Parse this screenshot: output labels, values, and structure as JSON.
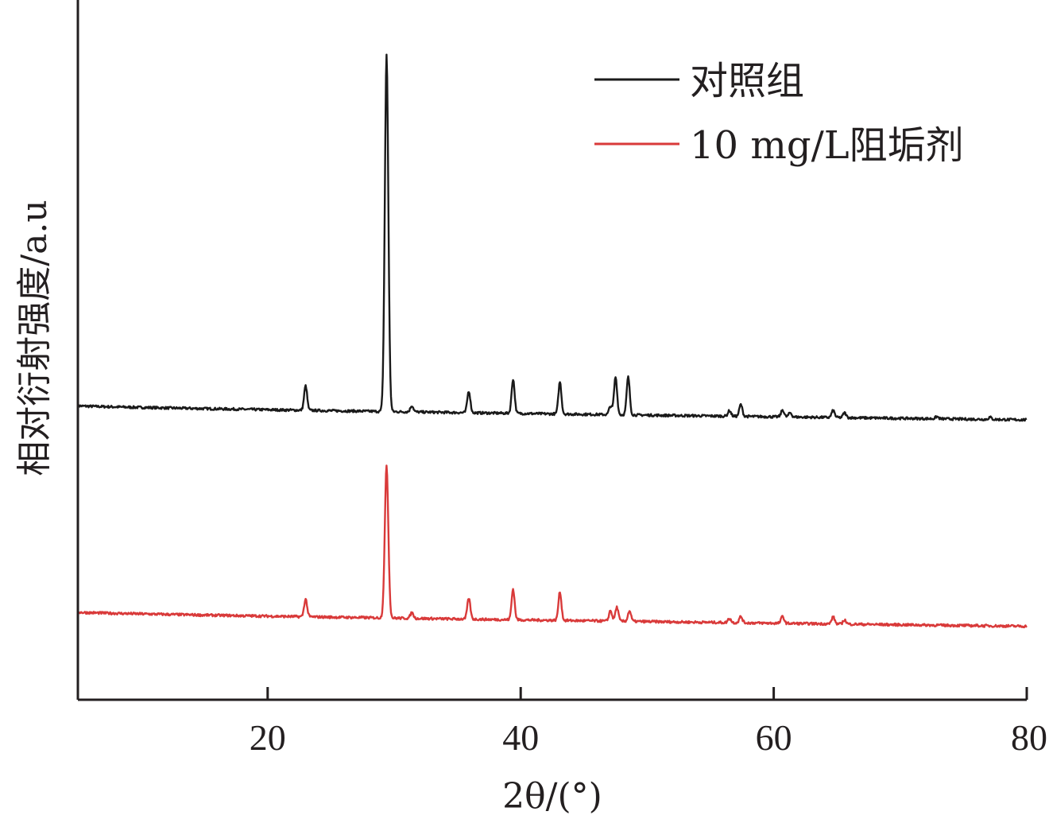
{
  "chart_data": {
    "type": "line",
    "title": "",
    "xlabel": "2θ/(°)",
    "ylabel": "相对衍射强度/a.u",
    "xlim": [
      5,
      80
    ],
    "ylim": [
      0,
      100
    ],
    "x_ticks": [
      20,
      40,
      60,
      80
    ],
    "y_ticks": [],
    "grid": false,
    "legend_position": "top-right",
    "colors": {
      "control": "#1a1a1a",
      "inhibitor": "#d93a3a",
      "axis": "#231f20"
    },
    "series": [
      {
        "name": "对照组",
        "baseline_start": 42.0,
        "baseline_end": 40.0,
        "peaks": [
          {
            "x": 23.0,
            "y": 3.5
          },
          {
            "x": 29.4,
            "y": 51.0
          },
          {
            "x": 31.4,
            "y": 0.9
          },
          {
            "x": 35.9,
            "y": 3.1
          },
          {
            "x": 39.4,
            "y": 4.9
          },
          {
            "x": 43.1,
            "y": 4.6
          },
          {
            "x": 47.1,
            "y": 1.2
          },
          {
            "x": 47.5,
            "y": 5.4
          },
          {
            "x": 48.5,
            "y": 5.4
          },
          {
            "x": 56.5,
            "y": 0.8
          },
          {
            "x": 57.4,
            "y": 1.7
          },
          {
            "x": 60.7,
            "y": 1.0
          },
          {
            "x": 61.3,
            "y": 0.6
          },
          {
            "x": 64.7,
            "y": 1.0
          },
          {
            "x": 65.6,
            "y": 0.7
          },
          {
            "x": 72.9,
            "y": 0.3
          },
          {
            "x": 77.1,
            "y": 0.3
          }
        ]
      },
      {
        "name": "10 mg/L阻垢剂",
        "baseline_start": 12.5,
        "baseline_end": 10.5,
        "peaks": [
          {
            "x": 23.0,
            "y": 2.5
          },
          {
            "x": 29.4,
            "y": 21.8
          },
          {
            "x": 31.4,
            "y": 0.8
          },
          {
            "x": 35.9,
            "y": 3.0
          },
          {
            "x": 39.4,
            "y": 4.4
          },
          {
            "x": 43.1,
            "y": 4.1
          },
          {
            "x": 47.1,
            "y": 1.5
          },
          {
            "x": 47.6,
            "y": 2.0
          },
          {
            "x": 48.6,
            "y": 1.5
          },
          {
            "x": 56.5,
            "y": 0.6
          },
          {
            "x": 57.4,
            "y": 0.9
          },
          {
            "x": 60.7,
            "y": 1.0
          },
          {
            "x": 64.7,
            "y": 1.0
          },
          {
            "x": 65.6,
            "y": 0.6
          }
        ]
      }
    ]
  }
}
